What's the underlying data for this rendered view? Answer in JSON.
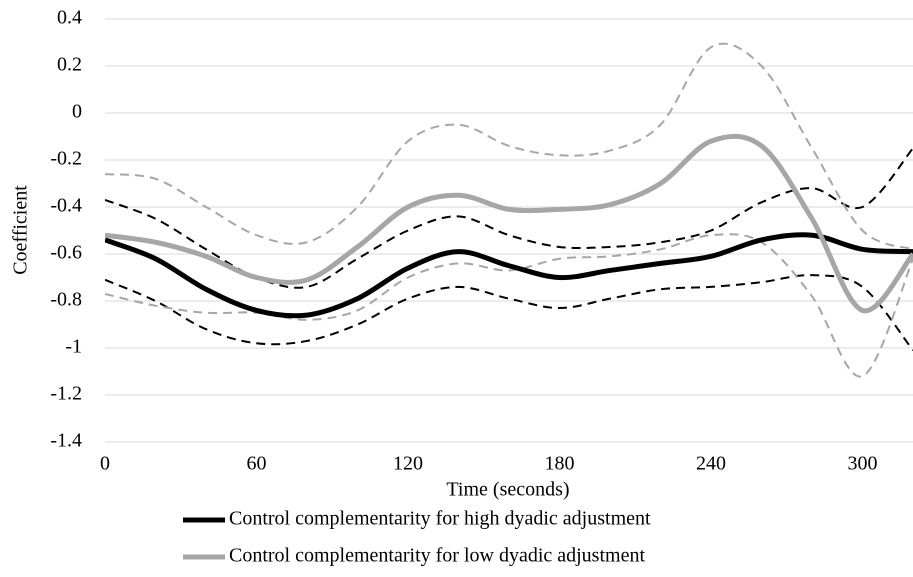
{
  "chart_data": {
    "type": "line",
    "y_label": "Coefficient",
    "x_label": "Time (seconds)",
    "x": [
      0,
      20,
      40,
      60,
      80,
      100,
      120,
      140,
      160,
      180,
      200,
      220,
      240,
      260,
      280,
      300,
      320
    ],
    "series": [
      {
        "color": "#000000",
        "style": "dashed",
        "values": [
          -0.37,
          -0.45,
          -0.58,
          -0.7,
          -0.74,
          -0.62,
          -0.5,
          -0.44,
          -0.52,
          -0.57,
          -0.57,
          -0.55,
          -0.5,
          -0.38,
          -0.32,
          -0.4,
          -0.15
        ]
      },
      {
        "color": "#000000",
        "style": "dashed",
        "values": [
          -0.71,
          -0.8,
          -0.92,
          -0.98,
          -0.97,
          -0.9,
          -0.79,
          -0.74,
          -0.79,
          -0.83,
          -0.79,
          -0.75,
          -0.74,
          -0.72,
          -0.69,
          -0.74,
          -1.01
        ]
      },
      {
        "color": "#a6a6a6",
        "style": "dashed",
        "values": [
          -0.26,
          -0.28,
          -0.4,
          -0.52,
          -0.55,
          -0.4,
          -0.12,
          -0.05,
          -0.14,
          -0.18,
          -0.16,
          -0.05,
          0.28,
          0.2,
          -0.15,
          -0.5,
          -0.58
        ]
      },
      {
        "color": "#a6a6a6",
        "style": "dashed",
        "values": [
          -0.77,
          -0.82,
          -0.85,
          -0.85,
          -0.88,
          -0.84,
          -0.7,
          -0.64,
          -0.67,
          -0.62,
          -0.61,
          -0.58,
          -0.52,
          -0.55,
          -0.78,
          -1.12,
          -0.62
        ]
      },
      {
        "name": "Control complementarity for high dyadic adjustment",
        "color": "#000000",
        "style": "solid",
        "values": [
          -0.54,
          -0.62,
          -0.75,
          -0.84,
          -0.86,
          -0.79,
          -0.66,
          -0.59,
          -0.65,
          -0.7,
          -0.67,
          -0.64,
          -0.61,
          -0.54,
          -0.52,
          -0.58,
          -0.59
        ]
      },
      {
        "name": "Control complementarity for low dyadic adjustment",
        "color": "#a6a6a6",
        "style": "solid",
        "values": [
          -0.52,
          -0.55,
          -0.61,
          -0.7,
          -0.71,
          -0.57,
          -0.4,
          -0.35,
          -0.41,
          -0.41,
          -0.39,
          -0.3,
          -0.12,
          -0.14,
          -0.45,
          -0.84,
          -0.6
        ]
      }
    ],
    "xlim": [
      0,
      320
    ],
    "xticks": [
      0,
      60,
      120,
      180,
      240,
      300
    ],
    "ylim": [
      -1.4,
      0.4
    ],
    "yticks": [
      -1.4,
      -1.2,
      -1,
      -0.8,
      -0.6,
      -0.4,
      -0.2,
      0,
      0.2,
      0.4
    ],
    "grid": true,
    "legend": "bottom"
  }
}
